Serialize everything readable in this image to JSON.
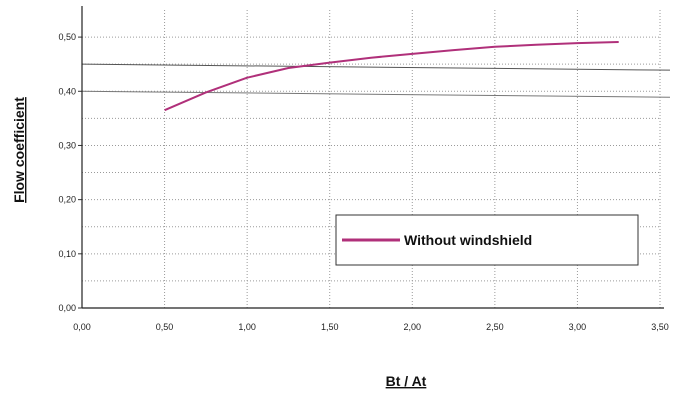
{
  "chart_data": {
    "type": "line",
    "title": "",
    "xlabel": "Bt / At",
    "ylabel": "Flow coefficient",
    "xlim": [
      0,
      3.5
    ],
    "ylim": [
      0,
      0.55
    ],
    "x_ticks": [
      "0,00",
      "0,50",
      "1,00",
      "1,50",
      "2,00",
      "2,50",
      "3,00",
      "3,50"
    ],
    "y_ticks": [
      "0,00",
      "0,10",
      "0,20",
      "0,30",
      "0,40",
      "0,50"
    ],
    "grid": true,
    "legend_position": "bottom-right",
    "series": [
      {
        "name": "Without windshield",
        "color": "#b0307a",
        "x": [
          0.5,
          0.75,
          1.0,
          1.25,
          1.5,
          1.75,
          2.0,
          2.25,
          2.5,
          2.75,
          3.0,
          3.25
        ],
        "y": [
          0.365,
          0.398,
          0.425,
          0.443,
          0.453,
          0.462,
          0.469,
          0.476,
          0.482,
          0.486,
          0.489,
          0.491
        ]
      }
    ]
  }
}
